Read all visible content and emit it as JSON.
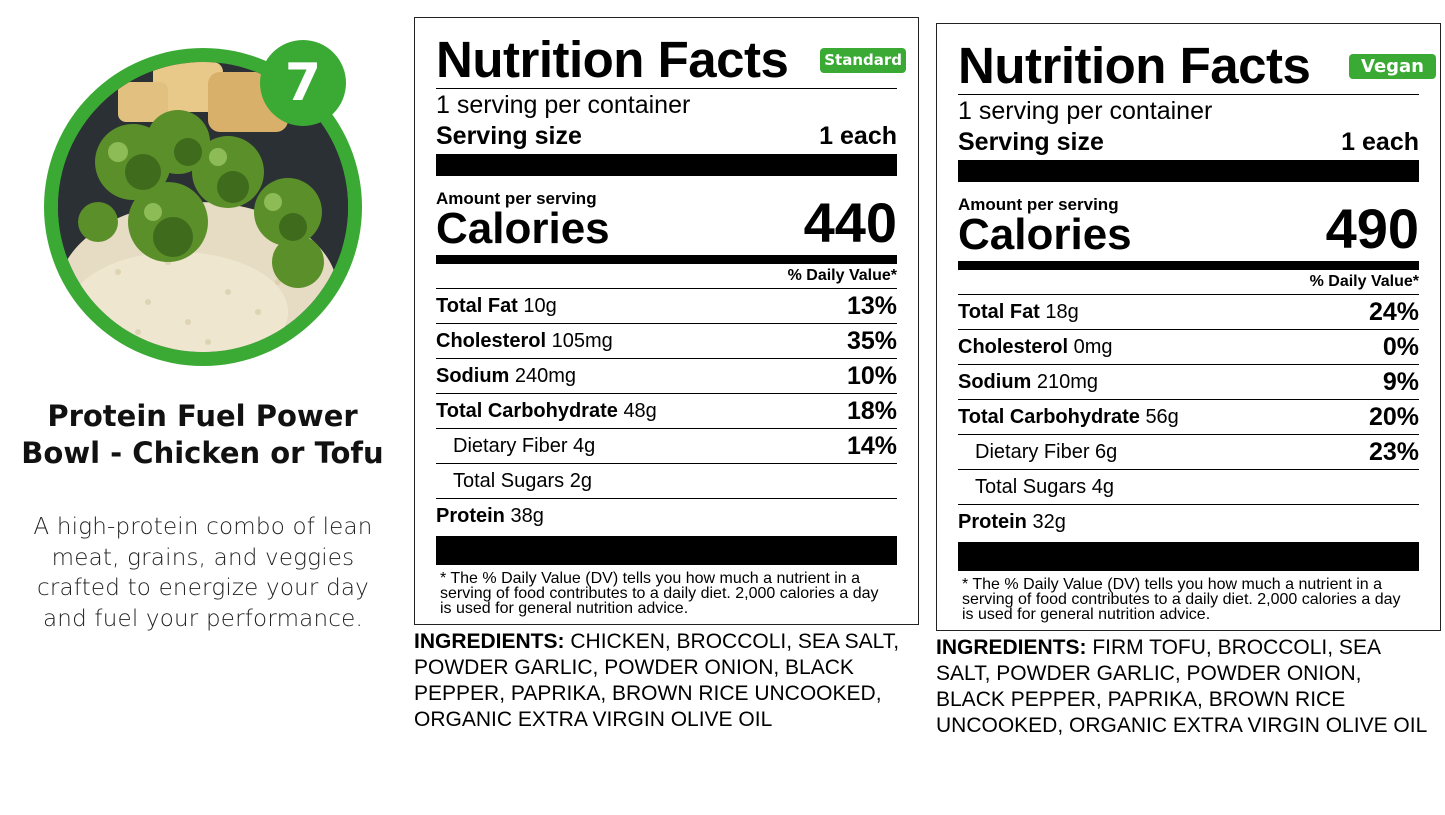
{
  "product": {
    "number": "7",
    "title_line1": "Protein Fuel Power",
    "title_line2": "Bowl - Chicken or Tofu",
    "description": "A high-protein combo of lean meat, grains, and veggies crafted to energize your day and fuel your performance.",
    "accent_color": "#3aaa35"
  },
  "labels": [
    {
      "title": "Nutrition Facts",
      "tag": "Standard",
      "servings": "1 serving per container",
      "serving_size_label": "Serving size",
      "serving_size_value": "1 each",
      "amount_label": "Amount per serving",
      "calories_label": "Calories",
      "calories": "440",
      "dv_header": "% Daily Value*",
      "rows": [
        {
          "name": "Total Fat",
          "amount": "10g",
          "dv": "13%"
        },
        {
          "name": "Cholesterol",
          "amount": "105mg",
          "dv": "35%"
        },
        {
          "name": "Sodium",
          "amount": "240mg",
          "dv": "10%"
        },
        {
          "name": "Total Carbohydrate",
          "amount": "48g",
          "dv": "18%"
        },
        {
          "name": "Dietary Fiber",
          "amount": "4g",
          "dv": "14%"
        },
        {
          "name": "Total Sugars",
          "amount": "2g",
          "dv": ""
        },
        {
          "name": "Protein",
          "amount": "38g",
          "dv": ""
        }
      ],
      "footnote": "* The % Daily Value (DV) tells you how much a nutrient in a serving of food contributes to a daily diet. 2,000 calories a day is used for general nutrition advice.",
      "ingredients_label": "INGREDIENTS:",
      "ingredients": "CHICKEN, BROCCOLI, SEA SALT, POWDER GARLIC, POWDER ONION, BLACK PEPPER, PAPRIKA, BROWN RICE UNCOOKED, ORGANIC EXTRA VIRGIN OLIVE OIL"
    },
    {
      "title": "Nutrition Facts",
      "tag": "Vegan",
      "servings": "1 serving per container",
      "serving_size_label": "Serving size",
      "serving_size_value": "1 each",
      "amount_label": "Amount per serving",
      "calories_label": "Calories",
      "calories": "490",
      "dv_header": "% Daily Value*",
      "rows": [
        {
          "name": "Total Fat",
          "amount": "18g",
          "dv": "24%"
        },
        {
          "name": "Cholesterol",
          "amount": "0mg",
          "dv": "0%"
        },
        {
          "name": "Sodium",
          "amount": "210mg",
          "dv": "9%"
        },
        {
          "name": "Total Carbohydrate",
          "amount": "56g",
          "dv": "20%"
        },
        {
          "name": "Dietary Fiber",
          "amount": "6g",
          "dv": "23%"
        },
        {
          "name": "Total Sugars",
          "amount": "4g",
          "dv": ""
        },
        {
          "name": "Protein",
          "amount": "32g",
          "dv": ""
        }
      ],
      "footnote": "* The % Daily Value (DV) tells you how much a nutrient in a serving of food contributes to a daily diet. 2,000 calories a day is used for general nutrition advice.",
      "ingredients_label": "INGREDIENTS:",
      "ingredients": "FIRM TOFU, BROCCOLI, SEA SALT, POWDER GARLIC, POWDER ONION, BLACK PEPPER, PAPRIKA, BROWN RICE UNCOOKED, ORGANIC EXTRA VIRGIN OLIVE OIL"
    }
  ]
}
